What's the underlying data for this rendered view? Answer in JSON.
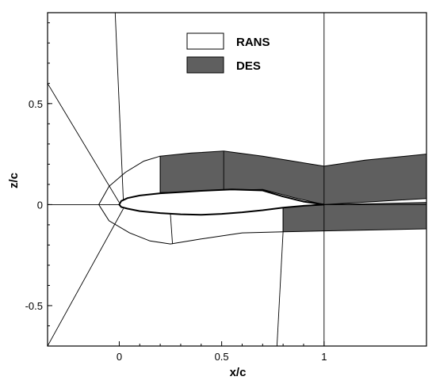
{
  "axes": {
    "xlabel": "x/c",
    "ylabel": "z/c",
    "xlim": [
      -0.35,
      1.5
    ],
    "ylim": [
      -0.7,
      0.95
    ],
    "xticks": [
      {
        "v": 0,
        "label": "0"
      },
      {
        "v": 0.5,
        "label": "0.5"
      },
      {
        "v": 1,
        "label": "1"
      }
    ],
    "yticks": [
      {
        "v": -0.5,
        "label": "-0.5"
      },
      {
        "v": 0,
        "label": "0"
      },
      {
        "v": 0.5,
        "label": "0.5"
      }
    ]
  },
  "legend": {
    "placement": "top-center",
    "items": [
      {
        "label": "RANS",
        "fill": "#ffffff"
      },
      {
        "label": "DES",
        "fill": "#5f5f5f"
      }
    ]
  },
  "colors": {
    "des_fill": "#5f5f5f",
    "rans_fill": "#ffffff",
    "line": "#000000"
  },
  "geometry": {
    "rans_outer_boundary": [
      [
        0.2,
        0.24
      ],
      [
        0.12,
        0.215
      ],
      [
        0.03,
        0.16
      ],
      [
        -0.05,
        0.09
      ],
      [
        -0.1,
        0.0
      ],
      [
        -0.05,
        -0.08
      ],
      [
        0.05,
        -0.14
      ],
      [
        0.15,
        -0.18
      ],
      [
        0.25,
        -0.195
      ],
      [
        0.4,
        -0.17
      ],
      [
        0.6,
        -0.14
      ],
      [
        0.8,
        -0.135
      ]
    ],
    "des_upper_region": [
      [
        0.2,
        0.24
      ],
      [
        0.35,
        0.255
      ],
      [
        0.51,
        0.265
      ],
      [
        0.7,
        0.24
      ],
      [
        1.0,
        0.19
      ],
      [
        1.2,
        0.22
      ],
      [
        1.5,
        0.25
      ],
      [
        1.5,
        0.03
      ],
      [
        1.0,
        0.0
      ],
      [
        0.85,
        0.035
      ],
      [
        0.7,
        0.075
      ],
      [
        0.5,
        0.07
      ],
      [
        0.35,
        0.06
      ],
      [
        0.2,
        0.06
      ]
    ],
    "des_wake_region": [
      [
        0.8,
        0.0
      ],
      [
        1.0,
        0.0
      ],
      [
        1.5,
        0.01
      ],
      [
        1.5,
        -0.12
      ],
      [
        1.0,
        -0.13
      ],
      [
        0.8,
        -0.135
      ]
    ],
    "airfoil_upper": [
      [
        1.0,
        0.0
      ],
      [
        0.9,
        0.015
      ],
      [
        0.8,
        0.04
      ],
      [
        0.7,
        0.07
      ],
      [
        0.55,
        0.075
      ],
      [
        0.4,
        0.068
      ],
      [
        0.3,
        0.062
      ],
      [
        0.2,
        0.056
      ],
      [
        0.1,
        0.045
      ],
      [
        0.04,
        0.032
      ],
      [
        0.01,
        0.018
      ],
      [
        0.0,
        0.0
      ]
    ],
    "airfoil_lower": [
      [
        0.0,
        0.0
      ],
      [
        0.01,
        -0.012
      ],
      [
        0.04,
        -0.02
      ],
      [
        0.1,
        -0.032
      ],
      [
        0.2,
        -0.042
      ],
      [
        0.3,
        -0.048
      ],
      [
        0.4,
        -0.05
      ],
      [
        0.5,
        -0.046
      ],
      [
        0.6,
        -0.038
      ],
      [
        0.7,
        -0.028
      ],
      [
        0.8,
        -0.015
      ],
      [
        0.9,
        -0.006
      ],
      [
        1.0,
        0.0
      ]
    ],
    "grid_lines": [
      [
        [
          0.0,
          0.0
        ],
        [
          -0.35,
          0.0
        ]
      ],
      [
        [
          0.0,
          0.01
        ],
        [
          -0.35,
          0.6
        ]
      ],
      [
        [
          0.02,
          0.02
        ],
        [
          -0.02,
          0.95
        ]
      ],
      [
        [
          0.2,
          0.06
        ],
        [
          0.2,
          0.24
        ]
      ],
      [
        [
          0.51,
          0.07
        ],
        [
          0.51,
          0.265
        ]
      ],
      [
        [
          0.02,
          -0.02
        ],
        [
          -0.35,
          -0.7
        ]
      ],
      [
        [
          0.25,
          -0.048
        ],
        [
          0.26,
          -0.195
        ]
      ],
      [
        [
          1.0,
          0.0
        ],
        [
          1.0,
          0.95
        ]
      ],
      [
        [
          1.0,
          0.0
        ],
        [
          1.0,
          -0.7
        ]
      ],
      [
        [
          0.8,
          -0.135
        ],
        [
          0.77,
          -0.7
        ]
      ],
      [
        [
          0.8,
          0.0
        ],
        [
          0.8,
          -0.135
        ]
      ],
      [
        [
          1.0,
          0.0
        ],
        [
          1.5,
          0.0
        ]
      ]
    ]
  }
}
